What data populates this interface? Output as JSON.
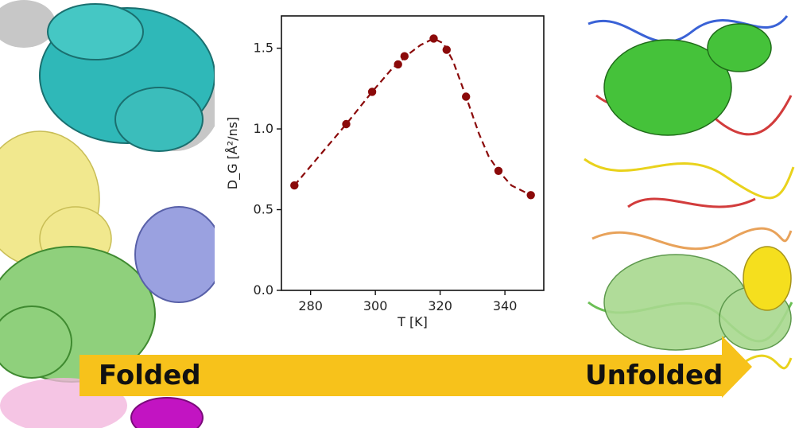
{
  "colors": {
    "series": "#8b0a0a",
    "arrow": "#f7c21b",
    "text": "#111111"
  },
  "labels": {
    "left": "Folded",
    "right": "Unfolded"
  },
  "chart_data": {
    "type": "line",
    "style": "dashed line with circular markers",
    "x_values": [
      275,
      291,
      299,
      307,
      309,
      318,
      322,
      328,
      338,
      348
    ],
    "y_values": [
      0.65,
      1.03,
      1.23,
      1.4,
      1.45,
      1.56,
      1.49,
      1.2,
      0.74,
      0.59
    ],
    "curve_x": [
      275,
      283,
      291,
      299,
      305,
      310,
      314,
      318,
      321,
      324,
      328,
      332,
      335,
      338,
      342,
      346,
      348
    ],
    "curve_y": [
      0.65,
      0.84,
      1.03,
      1.23,
      1.37,
      1.46,
      1.52,
      1.56,
      1.53,
      1.42,
      1.2,
      0.97,
      0.83,
      0.74,
      0.65,
      0.61,
      0.59
    ],
    "xlabel": "T [K]",
    "ylabel": "D_G [Å²/ns]",
    "xlim": [
      271,
      352
    ],
    "ylim": [
      0.0,
      1.7
    ],
    "xticks": [
      280,
      300,
      320,
      340
    ],
    "yticks": [
      0.0,
      0.5,
      1.0,
      1.5
    ],
    "xtick_labels": [
      "280",
      "300",
      "320",
      "340"
    ],
    "ytick_labels": [
      "0.0",
      "0.5",
      "1.0",
      "1.5"
    ],
    "grid": false
  }
}
